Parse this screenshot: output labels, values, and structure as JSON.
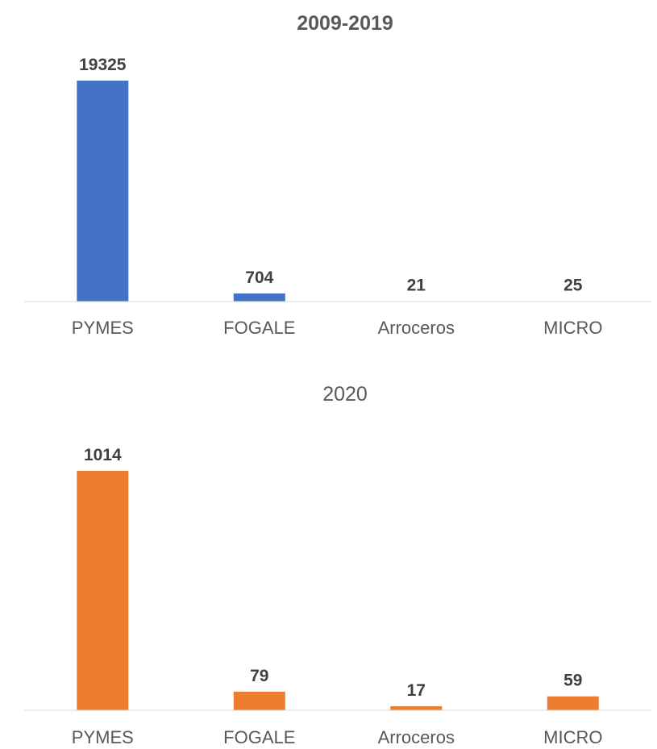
{
  "chart_data": [
    {
      "type": "bar",
      "title": "2009-2019",
      "title_bold": true,
      "categories": [
        "PYMES",
        "FOGALE",
        "Arroceros",
        "MICRO"
      ],
      "values": [
        19325,
        704,
        21,
        25
      ],
      "data_labels": [
        "19325",
        "704",
        "21",
        "25"
      ],
      "color": "#4472C4",
      "xlabel": "",
      "ylabel": "",
      "ylim": [
        0,
        19325
      ],
      "grid": false,
      "legend": "none"
    },
    {
      "type": "bar",
      "title": "2020",
      "title_bold": false,
      "categories": [
        "PYMES",
        "FOGALE",
        "Arroceros",
        "MICRO"
      ],
      "values": [
        1014,
        79,
        17,
        59
      ],
      "data_labels": [
        "1014",
        "79",
        "17",
        "59"
      ],
      "color": "#ED7D31",
      "xlabel": "",
      "ylabel": "",
      "ylim": [
        0,
        1014
      ],
      "grid": false,
      "legend": "none"
    }
  ]
}
